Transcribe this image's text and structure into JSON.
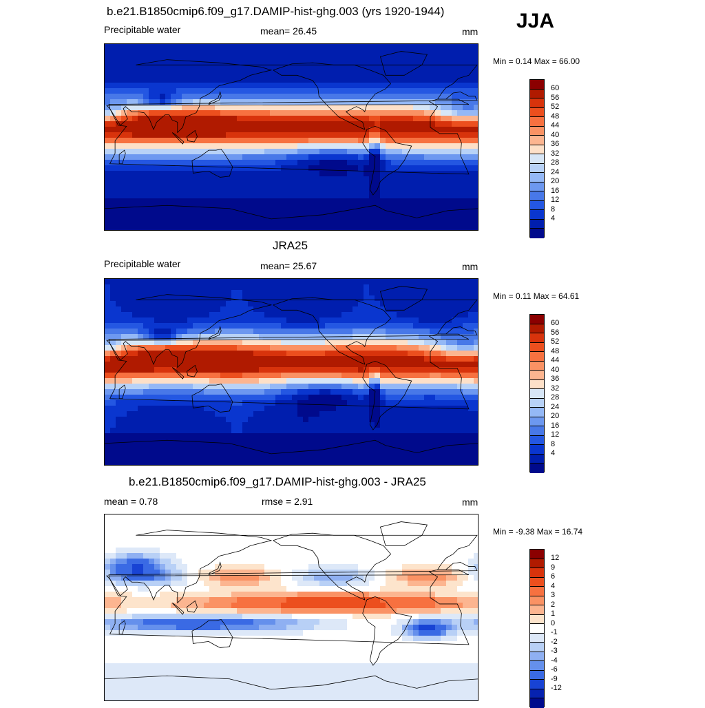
{
  "season": "JJA",
  "panels": [
    {
      "id": "model",
      "title": "b.e21.B1850cmip6.f09_g17.DAMIP-hist-ghg.003 (yrs 1920-1944)",
      "left_label": "Precipitable water",
      "center_label": "mean=  26.45",
      "units": "mm",
      "minmax": "Min =   0.14 Max =  66.00",
      "colorbar": {
        "colors": [
          "#8b0000",
          "#b01a00",
          "#d8330c",
          "#ec4f1e",
          "#f77140",
          "#fa9264",
          "#fcb590",
          "#fde0c8",
          "#d7e6f6",
          "#b8d2f7",
          "#94b8f6",
          "#6d98f0",
          "#4878e8",
          "#2457e2",
          "#0a36cf",
          "#001eae",
          "#000a8c"
        ],
        "ticks": [
          "60",
          "56",
          "52",
          "48",
          "44",
          "40",
          "36",
          "32",
          "28",
          "24",
          "20",
          "16",
          "12",
          "8",
          "4"
        ]
      }
    },
    {
      "id": "obs",
      "title": "JRA25",
      "left_label": "Precipitable water",
      "center_label": "mean=  25.67",
      "units": "mm",
      "minmax": "Min =   0.11 Max =  64.61",
      "colorbar": {
        "colors": [
          "#8b0000",
          "#b01a00",
          "#d8330c",
          "#ec4f1e",
          "#f77140",
          "#fa9264",
          "#fcb590",
          "#fde0c8",
          "#d7e6f6",
          "#b8d2f7",
          "#94b8f6",
          "#6d98f0",
          "#4878e8",
          "#2457e2",
          "#0a36cf",
          "#001eae",
          "#000a8c"
        ],
        "ticks": [
          "60",
          "56",
          "52",
          "48",
          "44",
          "40",
          "36",
          "32",
          "28",
          "24",
          "20",
          "16",
          "12",
          "8",
          "4"
        ]
      }
    },
    {
      "id": "diff",
      "title": "b.e21.B1850cmip6.f09_g17.DAMIP-hist-ghg.003 - JRA25",
      "left_label": "mean =   0.78",
      "center_label": "rmse =   2.91",
      "units": "mm",
      "minmax": "Min =  -9.38 Max =  16.74",
      "colorbar": {
        "colors": [
          "#8b0000",
          "#b01a00",
          "#d8330c",
          "#ec4f1e",
          "#f77140",
          "#fa9264",
          "#fcb590",
          "#fde4cc",
          "#ffffff",
          "#dde8f8",
          "#b8d0f6",
          "#8fb0f2",
          "#6590ec",
          "#3a6ae4",
          "#1843d4",
          "#0622b0",
          "#000a8c"
        ],
        "ticks": [
          "12",
          "9",
          "6",
          "4",
          "3",
          "2",
          "1",
          "0",
          "-1",
          "-2",
          "-3",
          "-4",
          "-6",
          "-9",
          "-12"
        ]
      }
    }
  ]
}
